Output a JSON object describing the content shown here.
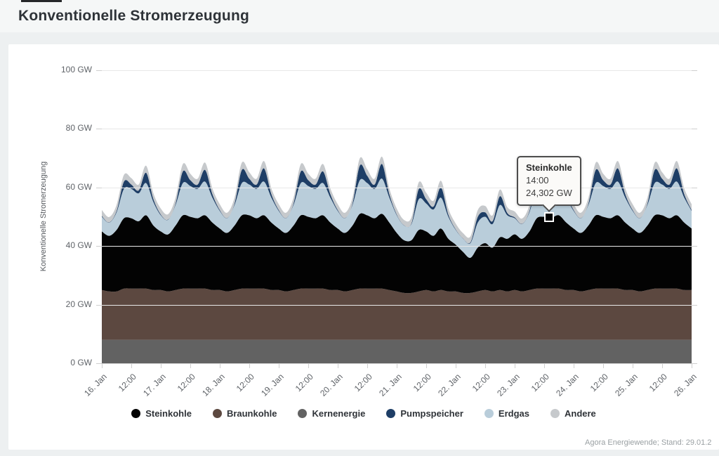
{
  "page": {
    "title": "Konventionelle Stromerzeugung",
    "source_note": "Agora Energiewende; Stand: 29.01.2"
  },
  "tooltip": {
    "title": "Steinkohle",
    "time": "14:00",
    "value": "24,302 GW",
    "hour_index": 182,
    "anchor_series": "Steinkohle"
  },
  "chart_data": {
    "type": "area",
    "stacked": true,
    "title": "Konventionelle Stromerzeugung",
    "ylabel": "Konventionelle Stromerzeugung",
    "unit": "GW",
    "ylim": [
      0,
      100
    ],
    "grid": true,
    "legend_position": "bottom",
    "y_ticks": [
      "0 GW",
      "20 GW",
      "40 GW",
      "60 GW",
      "80 GW",
      "100 GW"
    ],
    "x_ticks": [
      "16. Jan",
      "12:00",
      "17. Jan",
      "12:00",
      "18. Jan",
      "12:00",
      "19. Jan",
      "12:00",
      "20. Jan",
      "12:00",
      "21. Jan",
      "12:00",
      "22. Jan",
      "12:00",
      "23. Jan",
      "12:00",
      "24. Jan",
      "12:00",
      "25. Jan",
      "12:00",
      "26. Jan"
    ],
    "start": "16. Jan 00:00",
    "end": "26. Jan 00:00",
    "interval_hours": 3,
    "n_points": 81,
    "legend_order": [
      "Steinkohle",
      "Braunkohle",
      "Kernenergie",
      "Pumpspeicher",
      "Erdgas",
      "Andere"
    ],
    "stack_order_bottom_to_top": [
      "Kernenergie",
      "Braunkohle",
      "Steinkohle",
      "Erdgas",
      "Pumpspeicher",
      "Andere"
    ],
    "series": [
      {
        "name": "Kernenergie",
        "color": "#626262",
        "values": [
          8,
          8,
          8,
          8,
          8,
          8,
          8,
          8,
          8,
          8,
          8,
          8,
          8,
          8,
          8,
          8,
          8,
          8,
          8,
          8,
          8,
          8,
          8,
          8,
          8,
          8,
          8,
          8,
          8,
          8,
          8,
          8,
          8,
          8,
          8,
          8,
          8,
          8,
          8,
          8,
          8,
          8,
          8,
          8,
          8,
          8,
          8,
          8,
          8,
          8,
          8,
          8,
          8,
          8,
          8,
          8,
          8,
          8,
          8,
          8,
          8,
          8,
          8,
          8,
          8,
          8,
          8,
          8,
          8,
          8,
          8,
          8,
          8,
          8,
          8,
          8,
          8,
          8,
          8,
          8,
          8
        ]
      },
      {
        "name": "Braunkohle",
        "color": "#5c4840",
        "values": [
          17,
          16.5,
          16.5,
          17.5,
          17.5,
          17.5,
          17.5,
          17,
          17,
          16.5,
          17,
          17.5,
          17.5,
          17.5,
          17.5,
          17,
          17,
          16.5,
          17,
          17.5,
          17.5,
          17.5,
          17.5,
          17,
          17,
          16.5,
          17,
          17.5,
          17.5,
          17.5,
          17.5,
          17,
          17,
          16.5,
          17,
          17.5,
          17.5,
          17.5,
          17.5,
          17,
          16.5,
          16,
          16,
          16.5,
          17,
          16.5,
          17,
          16.5,
          16.5,
          16,
          16,
          16.5,
          17,
          16.5,
          17,
          16.5,
          17,
          16.5,
          17,
          17.5,
          17.5,
          17.5,
          17.5,
          17,
          17,
          16.5,
          17,
          17.5,
          17.5,
          17.5,
          17.5,
          17,
          17,
          16.5,
          17,
          17.5,
          17.5,
          17.5,
          17.5,
          17,
          17
        ]
      },
      {
        "name": "Steinkohle",
        "color": "#030303",
        "values": [
          20,
          19,
          21,
          24,
          24,
          23,
          25,
          22,
          20,
          19.5,
          22,
          25,
          24.5,
          24,
          25,
          23,
          21,
          20,
          22,
          25,
          25,
          24,
          25,
          23,
          21,
          20,
          22,
          25,
          24.5,
          24,
          25,
          23,
          21,
          20,
          22,
          25.5,
          25,
          24,
          25.5,
          23,
          20,
          18,
          18,
          21,
          20,
          19,
          21,
          18,
          16,
          14,
          12,
          15,
          16,
          15,
          18,
          18,
          19,
          18,
          20,
          24,
          24.5,
          24.2,
          25,
          23,
          21,
          20,
          22,
          25,
          24.5,
          24,
          25,
          23,
          21,
          20,
          22,
          25,
          25,
          24,
          25,
          23,
          21
        ]
      },
      {
        "name": "Erdgas",
        "color": "#b9cdda",
        "values": [
          5,
          4.5,
          6,
          10,
          10,
          9.5,
          11,
          8,
          5.5,
          5,
          7,
          11,
          10.5,
          10,
          11.5,
          8.5,
          6,
          5,
          7,
          11,
          10.5,
          10,
          11.5,
          8.5,
          6,
          5,
          7,
          11,
          10.5,
          10,
          11,
          8.5,
          6,
          5,
          7,
          11.5,
          11,
          10,
          12,
          8.5,
          6,
          5,
          5.5,
          10.5,
          9.5,
          9,
          10.5,
          7.5,
          5,
          4.5,
          5,
          8.5,
          9,
          8,
          11,
          8,
          5.5,
          5,
          6.5,
          10.5,
          10,
          9.5,
          11,
          8.5,
          6,
          5,
          7,
          11,
          10.5,
          10,
          11.5,
          8.5,
          6,
          5,
          7,
          11,
          10.5,
          10,
          11.5,
          8.5,
          6
        ]
      },
      {
        "name": "Pumpspeicher",
        "color": "#1e3e66",
        "values": [
          0.3,
          0.1,
          0.5,
          2.5,
          1.5,
          1,
          3.5,
          1,
          0.3,
          0.1,
          0.5,
          4,
          2,
          1.5,
          4,
          1.2,
          0.3,
          0.1,
          0.5,
          4.5,
          2,
          1.5,
          4.5,
          1.2,
          0.3,
          0.1,
          0.5,
          4,
          2,
          1.5,
          4,
          1.2,
          0.3,
          0.1,
          0.5,
          5,
          2.5,
          1.5,
          5,
          1.2,
          0.3,
          0.1,
          0.3,
          3.5,
          1.5,
          1,
          3.5,
          0.8,
          0.2,
          0.1,
          0.3,
          2,
          1.5,
          1,
          3,
          0.8,
          0.3,
          0.1,
          0.5,
          3.5,
          2,
          1.5,
          4,
          1.2,
          0.3,
          0.1,
          0.5,
          4.5,
          2,
          1.5,
          4.5,
          1.2,
          0.3,
          0.1,
          0.5,
          4.5,
          2,
          1.5,
          4.5,
          1.2,
          0.3
        ]
      },
      {
        "name": "Andere",
        "color": "#c6c9cc",
        "values": [
          2,
          1.8,
          2,
          2.3,
          2.2,
          2,
          2.4,
          2,
          2,
          1.8,
          2,
          2.5,
          2.2,
          2,
          2.5,
          2,
          2,
          1.8,
          2,
          2.5,
          2.2,
          2,
          2.5,
          2,
          2,
          1.8,
          2,
          2.5,
          2.2,
          2,
          2.5,
          2,
          2,
          1.8,
          2,
          2.5,
          2.2,
          2,
          2.5,
          2,
          2,
          1.8,
          2,
          2.3,
          2.2,
          2,
          2.3,
          2,
          2,
          1.8,
          2,
          2.3,
          2.2,
          2,
          2.3,
          2,
          2,
          1.8,
          2,
          2.5,
          2.2,
          2,
          2.5,
          2,
          2,
          1.8,
          2,
          2.5,
          2.2,
          2,
          2.5,
          2,
          2,
          1.8,
          2,
          2.5,
          2.2,
          2,
          2.5,
          2,
          2
        ]
      }
    ]
  }
}
